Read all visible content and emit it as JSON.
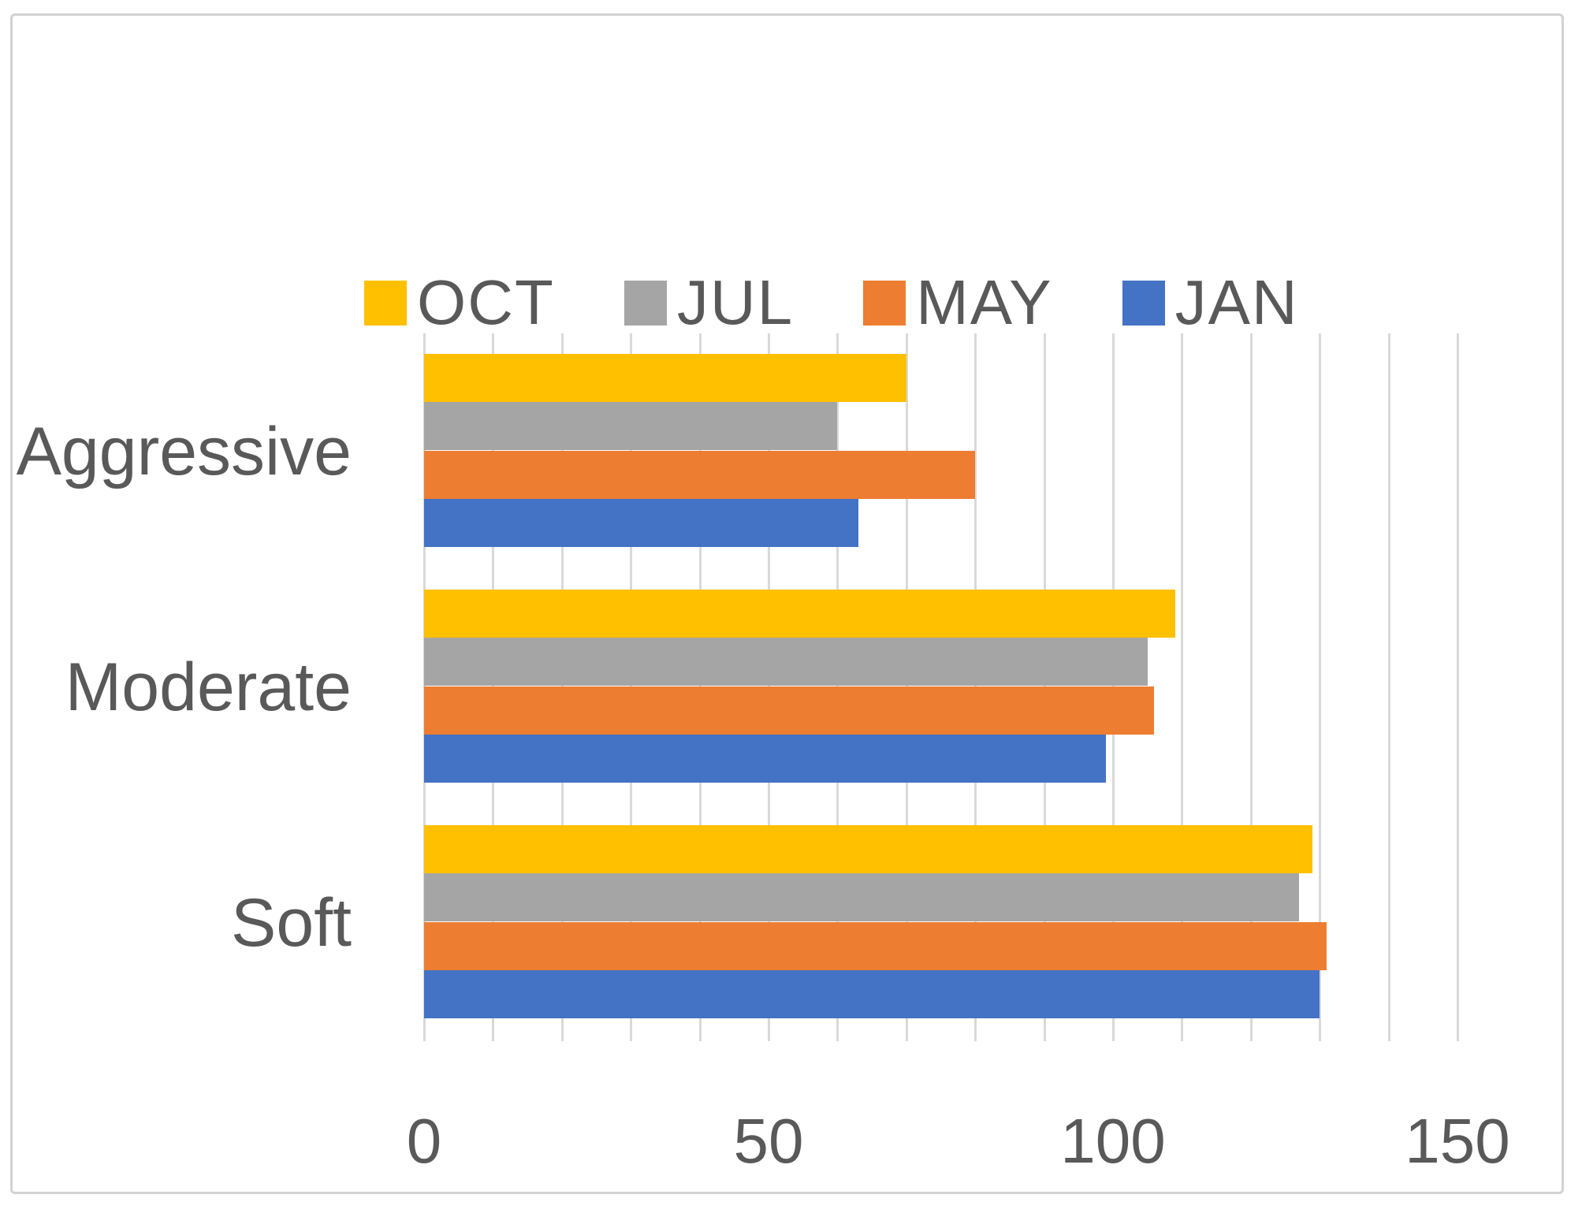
{
  "chart_data": {
    "type": "bar",
    "orientation": "horizontal",
    "title": "",
    "xlabel": "",
    "ylabel": "",
    "categories": [
      "Aggressive",
      "Moderate",
      "Soft"
    ],
    "series": [
      {
        "name": "OCT",
        "color": "#FFC000",
        "values": [
          70,
          109,
          129
        ]
      },
      {
        "name": "JUL",
        "color": "#A5A5A5",
        "values": [
          60,
          105,
          127
        ]
      },
      {
        "name": "MAY",
        "color": "#ED7D31",
        "values": [
          80,
          106,
          131
        ]
      },
      {
        "name": "JAN",
        "color": "#4472C4",
        "values": [
          63,
          99,
          130
        ]
      }
    ],
    "x_ticks": [
      0,
      50,
      100,
      150
    ],
    "xlim": [
      0,
      160
    ],
    "gridline_step": 10,
    "gridline_max": 150,
    "grid": "vertical-only",
    "legend_position": "top",
    "colors": {
      "gridline": "#D9D9D9",
      "axis_text": "#595959",
      "frame_border": "#D2D2D2",
      "background": "#FFFFFF"
    }
  }
}
